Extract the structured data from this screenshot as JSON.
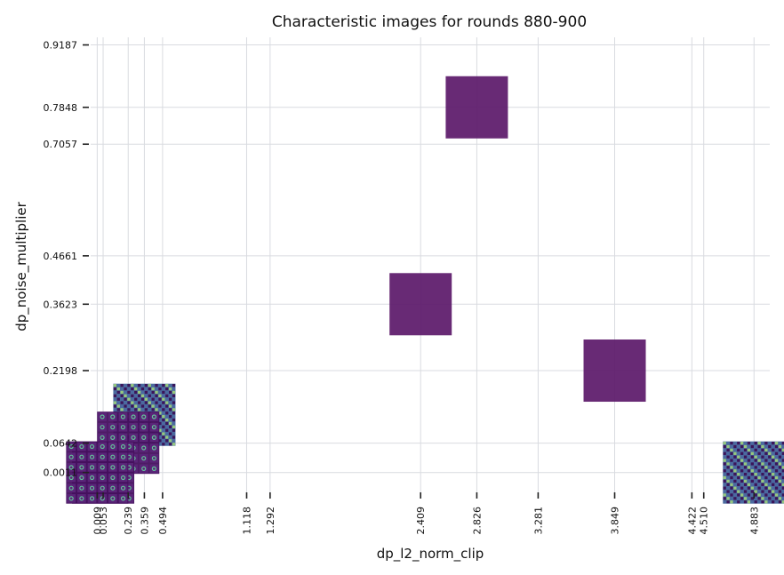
{
  "chart_data": {
    "type": "scatter",
    "title": "Characteristic images for rounds 880-900",
    "xlabel": "dp_l2_norm_clip",
    "ylabel": "dp_noise_multiplier",
    "xlim": [
      0.0,
      5.0
    ],
    "ylim": [
      -0.03,
      0.935
    ],
    "grid": true,
    "x_ticks": [
      {
        "value": 0.009,
        "label": "0.009"
      },
      {
        "value": 0.053,
        "label": "0.053"
      },
      {
        "value": 0.239,
        "label": "0.239"
      },
      {
        "value": 0.359,
        "label": "0.359"
      },
      {
        "value": 0.494,
        "label": "0.494"
      },
      {
        "value": 1.118,
        "label": "1.118"
      },
      {
        "value": 1.292,
        "label": "1.292"
      },
      {
        "value": 2.409,
        "label": "2.409"
      },
      {
        "value": 2.826,
        "label": "2.826"
      },
      {
        "value": 3.281,
        "label": "3.281"
      },
      {
        "value": 3.849,
        "label": "3.849"
      },
      {
        "value": 4.422,
        "label": "4.422"
      },
      {
        "value": 4.51,
        "label": "4.510"
      },
      {
        "value": 4.883,
        "label": "4.883"
      }
    ],
    "y_ticks": [
      {
        "value": 0.0011,
        "label": "0.0011"
      },
      {
        "value": 0.0642,
        "label": "0.0642"
      },
      {
        "value": 0.2198,
        "label": "0.2198"
      },
      {
        "value": 0.3623,
        "label": "0.3623"
      },
      {
        "value": 0.4661,
        "label": "0.4661"
      },
      {
        "value": 0.7057,
        "label": "0.7057"
      },
      {
        "value": 0.7848,
        "label": "0.7848"
      },
      {
        "value": 0.9187,
        "label": "0.9187"
      }
    ],
    "points": [
      {
        "x": 2.826,
        "y": 0.7848,
        "image": "solid"
      },
      {
        "x": 2.409,
        "y": 0.3623,
        "image": "solid"
      },
      {
        "x": 3.849,
        "y": 0.2198,
        "image": "solid"
      },
      {
        "x": 4.883,
        "y": 0.0011,
        "image": "fine-grid"
      },
      {
        "x": 0.359,
        "y": 0.125,
        "image": "fine-grid"
      },
      {
        "x": 0.239,
        "y": 0.065,
        "image": "digit-grid"
      },
      {
        "x": 0.053,
        "y": 0.0011,
        "image": "digit-grid"
      },
      {
        "x": 0.009,
        "y": 0.0011,
        "image": "digit-grid"
      }
    ],
    "colors": {
      "solid": "#5c1a6b",
      "texture_dark": "#3a0c52",
      "texture_mid": "#4b6aa0",
      "texture_light": "#9fd37a",
      "digit_bg": "#45105e",
      "digit_cell": "#5a2578",
      "digit_stroke": "#63c39a"
    }
  }
}
